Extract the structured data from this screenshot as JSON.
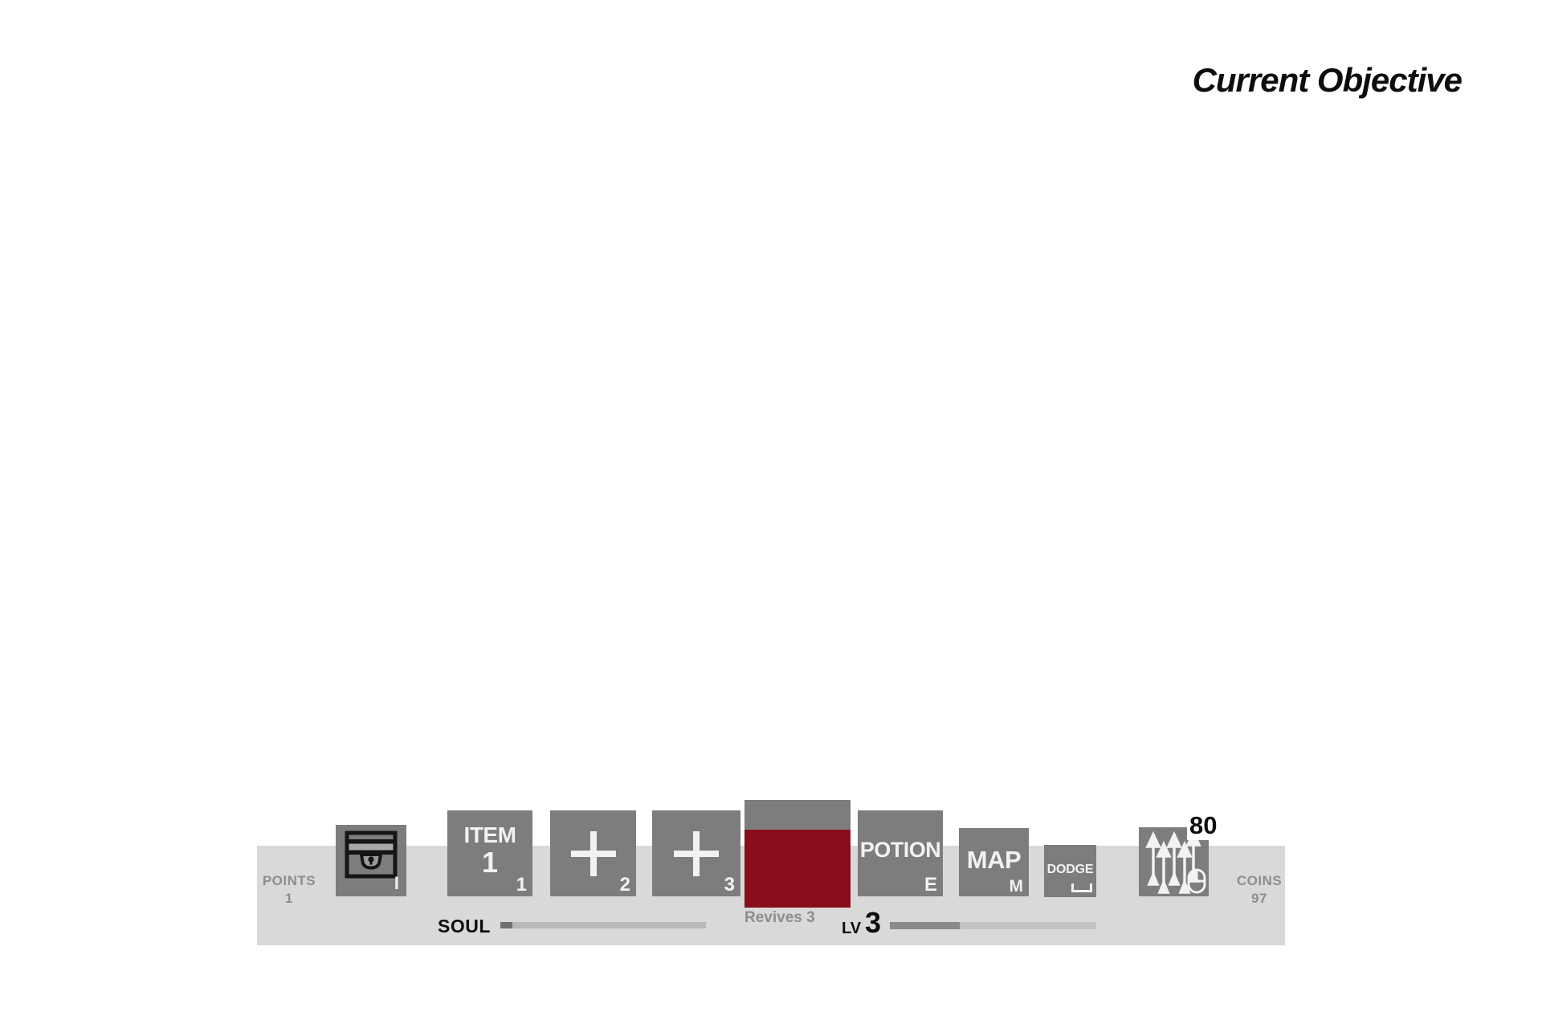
{
  "objective": {
    "title": "Current Objective"
  },
  "hud": {
    "points": {
      "label": "POINTS",
      "value": "1"
    },
    "coins": {
      "label": "COINS",
      "value": "97"
    },
    "soul_meter": {
      "label": "SOUL",
      "fill_pct": 6
    },
    "level_meter": {
      "label": "LV",
      "value": "3",
      "fill_pct": 34
    },
    "revives_label": "Revives 3",
    "ammo_count": "80",
    "slots": {
      "chest": {
        "icon": "chest-icon",
        "key": "I"
      },
      "item1": {
        "name": "ITEM",
        "number": "1",
        "key": "1"
      },
      "slot2": {
        "icon": "plus-icon",
        "key": "2"
      },
      "slot3": {
        "icon": "plus-icon",
        "key": "3"
      },
      "revive": {
        "icon": "revive-charge-block"
      },
      "potion": {
        "label": "POTION",
        "key": "E"
      },
      "map": {
        "label": "MAP",
        "key": "M"
      },
      "dodge": {
        "label": "DODGE",
        "key_icon": "spacebar-icon"
      },
      "ammo": {
        "icon": "arrows-icon",
        "key_icon": "mouse-left-click-icon"
      }
    },
    "colors": {
      "hud_bar": "#d9d9d9",
      "slot_gray": "#7d7d7d",
      "revive_red": "#870e1a",
      "muted_text": "#8e8e8e",
      "text_black": "#0d0d0d"
    }
  }
}
